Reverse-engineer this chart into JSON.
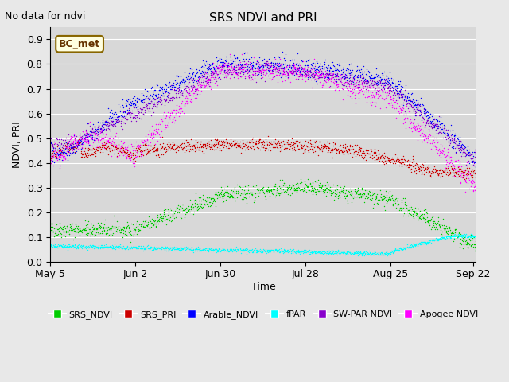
{
  "title": "SRS NDVI and PRI",
  "no_data_text": "No data for ndvi",
  "ylabel": "NDVI, PRI",
  "xlabel": "Time",
  "bc_met_label": "BC_met",
  "ylim": [
    0.0,
    0.95
  ],
  "yticks": [
    0.0,
    0.1,
    0.2,
    0.3,
    0.4,
    0.5,
    0.6,
    0.7,
    0.8,
    0.9
  ],
  "xtick_labels": [
    "May 5",
    "Jun 2",
    "Jun 30",
    "Jul 28",
    "Aug 25",
    "Sep 22"
  ],
  "xtick_positions": [
    0,
    28,
    56,
    84,
    112,
    139
  ],
  "xlim": [
    0,
    140
  ],
  "background_color": "#e8e8e8",
  "plot_bg_color": "#d8d8d8",
  "colors": {
    "SRS_NDVI": "#00cc00",
    "SRS_PRI": "#cc0000",
    "Arable_NDVI": "#0000ff",
    "fPAR": "#00ffff",
    "SW_PAR_NDVI": "#8800cc",
    "Apogee_NDVI": "#ff00ff"
  }
}
